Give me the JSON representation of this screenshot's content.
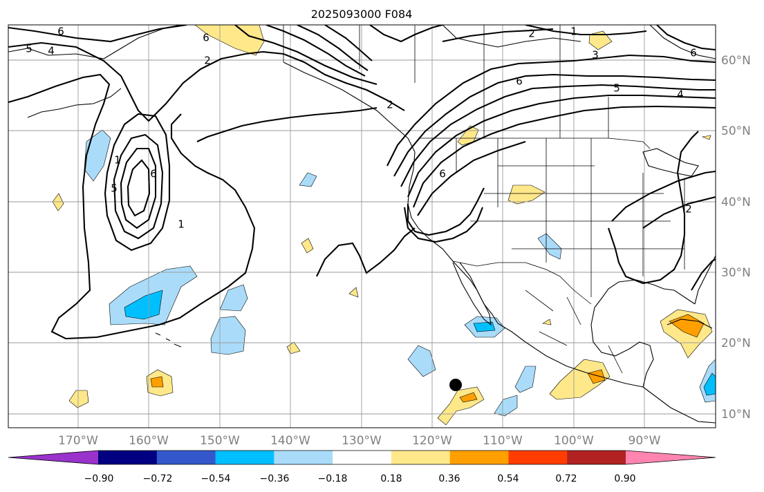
{
  "title": "2025093000 F084",
  "map": {
    "lon_labels": [
      "170°W",
      "160°W",
      "150°W",
      "140°W",
      "130°W",
      "120°W",
      "110°W",
      "100°W",
      "90°W"
    ],
    "lat_labels": [
      "60°N",
      "50°N",
      "40°N",
      "30°N",
      "20°N",
      "10°N"
    ],
    "contour_labels": [
      "5",
      "4",
      "6",
      "6",
      "2",
      "2",
      "1",
      "3",
      "6",
      "6",
      "5",
      "4",
      "2",
      "1",
      "5",
      "6",
      "1",
      "6",
      "2"
    ],
    "marker": {
      "lon": -116.5,
      "lat": 14.0,
      "color": "#000000"
    },
    "grid": true
  },
  "colorbar": {
    "tick_labels": [
      "−0.90",
      "−0.72",
      "−0.54",
      "−0.36",
      "−0.18",
      "0.18",
      "0.36",
      "0.54",
      "0.72",
      "0.90"
    ],
    "colors": [
      "#9933cc",
      "#000080",
      "#3458cc",
      "#00bfff",
      "#aadcfa",
      "#ffffff",
      "#ffe88a",
      "#ffa000",
      "#ff3d00",
      "#b22222",
      "#ff85b0"
    ]
  }
}
